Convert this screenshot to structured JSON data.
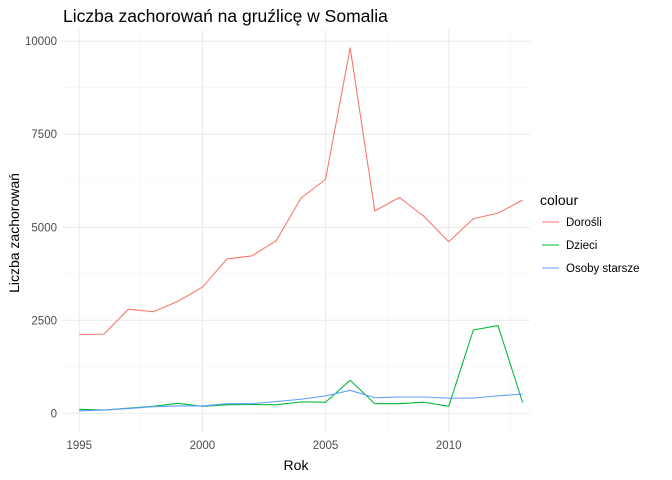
{
  "chart_data": {
    "type": "line",
    "title": "Liczba zachorowań na gruźlicę w Somalia",
    "xlabel": "Rok",
    "ylabel": "Liczba zachorowań",
    "xlim": [
      1994.3,
      2013.3
    ],
    "ylim": [
      -500,
      10300
    ],
    "x_ticks": [
      1995,
      2000,
      2005,
      2010
    ],
    "y_ticks": [
      0,
      2500,
      5000,
      7500,
      10000
    ],
    "x_tick_labels": [
      "1995",
      "2000",
      "2005",
      "2010"
    ],
    "y_tick_labels": [
      "0",
      "2500",
      "5000",
      "7500",
      "10000"
    ],
    "grid": true,
    "legend": {
      "title": "colour",
      "position": "right"
    },
    "x": [
      1995,
      1996,
      1997,
      1998,
      1999,
      2000,
      2001,
      2002,
      2003,
      2004,
      2005,
      2006,
      2007,
      2008,
      2009,
      2010,
      2011,
      2012,
      2013
    ],
    "series": [
      {
        "name": "Dorośli",
        "color": "#F8766D",
        "values": [
          2120,
          2130,
          2800,
          2730,
          3010,
          3390,
          4150,
          4230,
          4640,
          5780,
          6290,
          9820,
          5440,
          5800,
          5290,
          4610,
          5230,
          5380,
          5730
        ]
      },
      {
        "name": "Dzieci",
        "color": "#00BA38",
        "values": [
          110,
          90,
          140,
          190,
          270,
          190,
          230,
          240,
          230,
          310,
          300,
          890,
          260,
          260,
          300,
          190,
          2240,
          2360,
          290
        ]
      },
      {
        "name": "Osoby starsze",
        "color": "#619CFF",
        "values": [
          70,
          90,
          130,
          180,
          200,
          200,
          260,
          260,
          320,
          380,
          470,
          620,
          420,
          440,
          440,
          410,
          410,
          470,
          520
        ]
      }
    ]
  }
}
